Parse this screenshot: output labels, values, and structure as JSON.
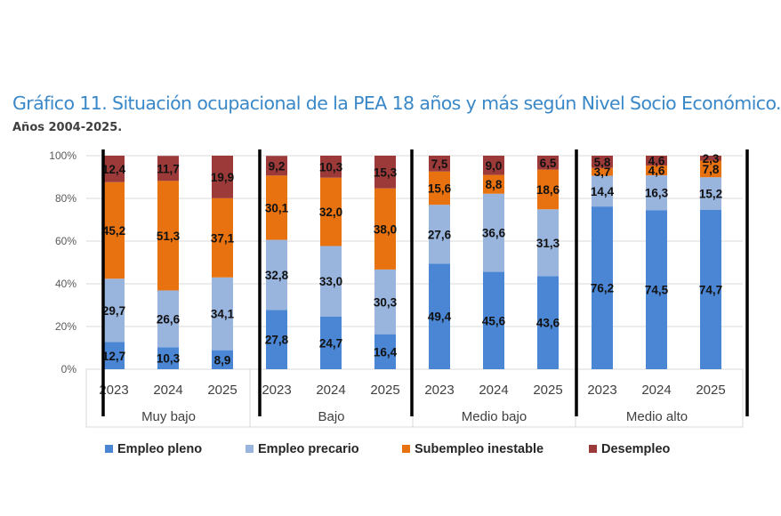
{
  "chart_data": {
    "type": "bar",
    "stacked": true,
    "title": "Gráfico 11.  Situación ocupacional de la PEA 18 años y más según Nivel Socio Económico.",
    "subtitle": "Años 2004-2025.",
    "groups": [
      "Muy bajo",
      "Bajo",
      "Medio bajo",
      "Medio alto"
    ],
    "years": [
      "2023",
      "2024",
      "2025"
    ],
    "ylim": [
      0,
      100
    ],
    "yticks": [
      "0%",
      "20%",
      "40%",
      "60%",
      "80%",
      "100%"
    ],
    "grid": true,
    "legend_position": "bottom",
    "series": [
      {
        "name": "Empleo pleno",
        "color": "#4a86d4",
        "values": [
          12.7,
          10.3,
          8.9,
          27.8,
          24.7,
          16.4,
          49.4,
          45.6,
          43.6,
          76.2,
          74.5,
          74.7
        ],
        "labels": [
          "12,7",
          "10,3",
          "8,9",
          "27,8",
          "24,7",
          "16,4",
          "49,4",
          "45,6",
          "43,6",
          "76,2",
          "74,5",
          "74,7"
        ]
      },
      {
        "name": "Empleo precario",
        "color": "#99b5de",
        "values": [
          29.7,
          26.6,
          34.1,
          32.8,
          33.0,
          30.3,
          27.6,
          36.6,
          31.3,
          14.4,
          16.3,
          15.2
        ],
        "labels": [
          "29,7",
          "26,6",
          "34,1",
          "32,8",
          "33,0",
          "30,3",
          "27,6",
          "36,6",
          "31,3",
          "14,4",
          "16,3",
          "15,2"
        ]
      },
      {
        "name": "Subempleo inestable",
        "color": "#e8720f",
        "values": [
          45.2,
          51.3,
          37.1,
          30.1,
          32.0,
          38.0,
          15.6,
          8.8,
          18.6,
          3.7,
          4.6,
          7.8
        ],
        "labels": [
          "45,2",
          "51,3",
          "37,1",
          "30,1",
          "32,0",
          "38,0",
          "15,6",
          "8,8",
          "18,6",
          "3,7",
          "4,6",
          "7,8"
        ]
      },
      {
        "name": "Desempleo",
        "color": "#9c3a3a",
        "values": [
          12.4,
          11.7,
          19.9,
          9.2,
          10.3,
          15.3,
          7.5,
          9.0,
          6.5,
          5.8,
          4.6,
          2.3
        ],
        "labels": [
          "12,4",
          "11,7",
          "19,9",
          "9,2",
          "10,3",
          "15,3",
          "7,5",
          "9,0",
          "6,5",
          "5,8",
          "4,6",
          "2,3"
        ]
      }
    ]
  }
}
